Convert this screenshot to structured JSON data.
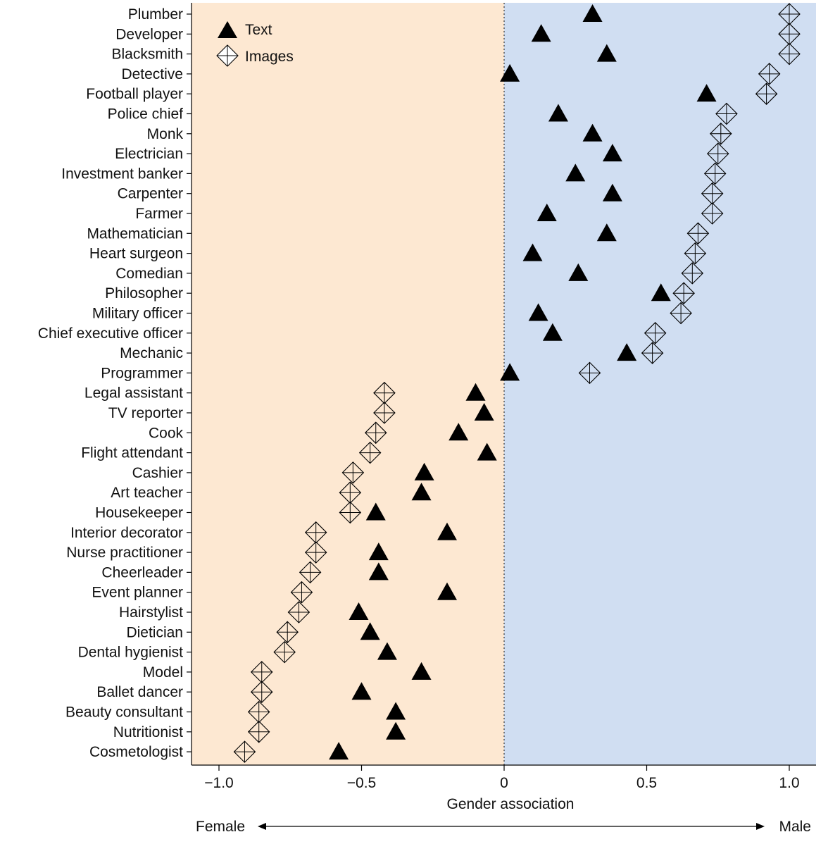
{
  "chart_data": {
    "type": "scatter",
    "title": "",
    "xlabel": "Gender association",
    "ylabel": "",
    "xlim": [
      -1.1,
      1.1
    ],
    "xticks": [
      {
        "value": -1.0,
        "label": "−1.0"
      },
      {
        "value": -0.5,
        "label": "−0.5"
      },
      {
        "value": 0,
        "label": "0"
      },
      {
        "value": 0.5,
        "label": "0.5"
      },
      {
        "value": 1.0,
        "label": "1.0"
      }
    ],
    "direction_labels": {
      "left": "Female",
      "right": "Male"
    },
    "background": {
      "negative_color": "#fde8d2",
      "positive_color": "#d0def2"
    },
    "legend": {
      "placement": "top-left"
    },
    "categories": [
      "Plumber",
      "Developer",
      "Blacksmith",
      "Detective",
      "Football player",
      "Police chief",
      "Monk",
      "Electrician",
      "Investment banker",
      "Carpenter",
      "Farmer",
      "Mathematician",
      "Heart surgeon",
      "Comedian",
      "Philosopher",
      "Military officer",
      "Chief executive officer",
      "Mechanic",
      "Programmer",
      "Legal assistant",
      "TV reporter",
      "Cook",
      "Flight attendant",
      "Cashier",
      "Art teacher",
      "Housekeeper",
      "Interior decorator",
      "Nurse practitioner",
      "Cheerleader",
      "Event planner",
      "Hairstylist",
      "Dietician",
      "Dental hygienist",
      "Model",
      "Ballet dancer",
      "Beauty consultant",
      "Nutritionist",
      "Cosmetologist"
    ],
    "series": [
      {
        "name": "Text",
        "marker": "filled-triangle",
        "color": "#000000",
        "values": [
          0.31,
          0.13,
          0.36,
          0.02,
          0.71,
          0.19,
          0.31,
          0.38,
          0.25,
          0.38,
          0.15,
          0.36,
          0.1,
          0.26,
          0.55,
          0.12,
          0.17,
          0.43,
          0.02,
          -0.1,
          -0.07,
          -0.16,
          -0.06,
          -0.28,
          -0.29,
          -0.45,
          -0.2,
          -0.44,
          -0.44,
          -0.2,
          -0.51,
          -0.47,
          -0.41,
          -0.29,
          -0.5,
          -0.38,
          -0.38,
          -0.58
        ]
      },
      {
        "name": "Images",
        "marker": "open-diamond-cross",
        "color": "#000000",
        "values": [
          1.0,
          1.0,
          1.0,
          0.93,
          0.92,
          0.78,
          0.76,
          0.75,
          0.74,
          0.73,
          0.73,
          0.68,
          0.67,
          0.66,
          0.63,
          0.62,
          0.53,
          0.52,
          0.3,
          -0.42,
          -0.42,
          -0.45,
          -0.47,
          -0.53,
          -0.54,
          -0.54,
          -0.66,
          -0.66,
          -0.68,
          -0.71,
          -0.72,
          -0.76,
          -0.77,
          -0.85,
          -0.85,
          -0.86,
          -0.86,
          -0.91
        ]
      }
    ]
  }
}
